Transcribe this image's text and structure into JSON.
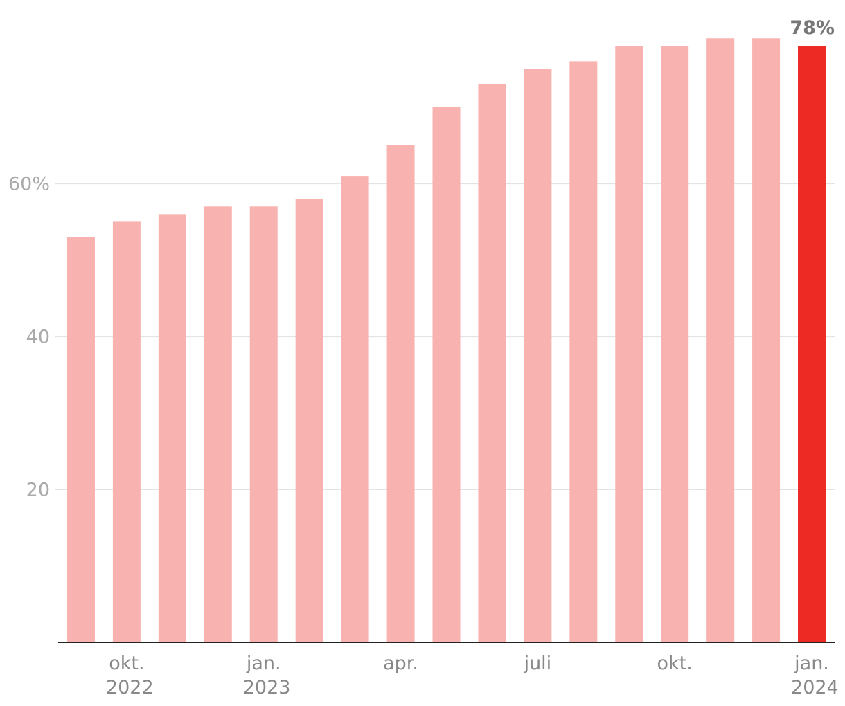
{
  "chart_data": {
    "type": "bar",
    "categories": [
      null,
      "okt. 2022",
      null,
      null,
      "jan. 2023",
      null,
      null,
      "apr.",
      null,
      null,
      "juli",
      null,
      null,
      "okt.",
      null,
      null,
      "jan. 2024"
    ],
    "values": [
      53,
      55,
      56,
      57,
      57,
      58,
      61,
      65,
      70,
      73,
      75,
      76,
      78,
      78,
      79,
      79,
      78
    ],
    "value_labels": [
      null,
      null,
      null,
      null,
      null,
      null,
      null,
      null,
      null,
      null,
      null,
      null,
      null,
      null,
      null,
      null,
      "78%"
    ],
    "colors": [
      "#f8b3b0",
      "#f8b3b0",
      "#f8b3b0",
      "#f8b3b0",
      "#f8b3b0",
      "#f8b3b0",
      "#f8b3b0",
      "#f8b3b0",
      "#f8b3b0",
      "#f8b3b0",
      "#f8b3b0",
      "#f8b3b0",
      "#f8b3b0",
      "#f8b3b0",
      "#f8b3b0",
      "#f8b3b0",
      "#ee2a24"
    ],
    "ylim": [
      0,
      84
    ],
    "yticks": [
      20,
      40,
      {
        "value": 60,
        "label": "60%"
      }
    ],
    "grid": true
  }
}
